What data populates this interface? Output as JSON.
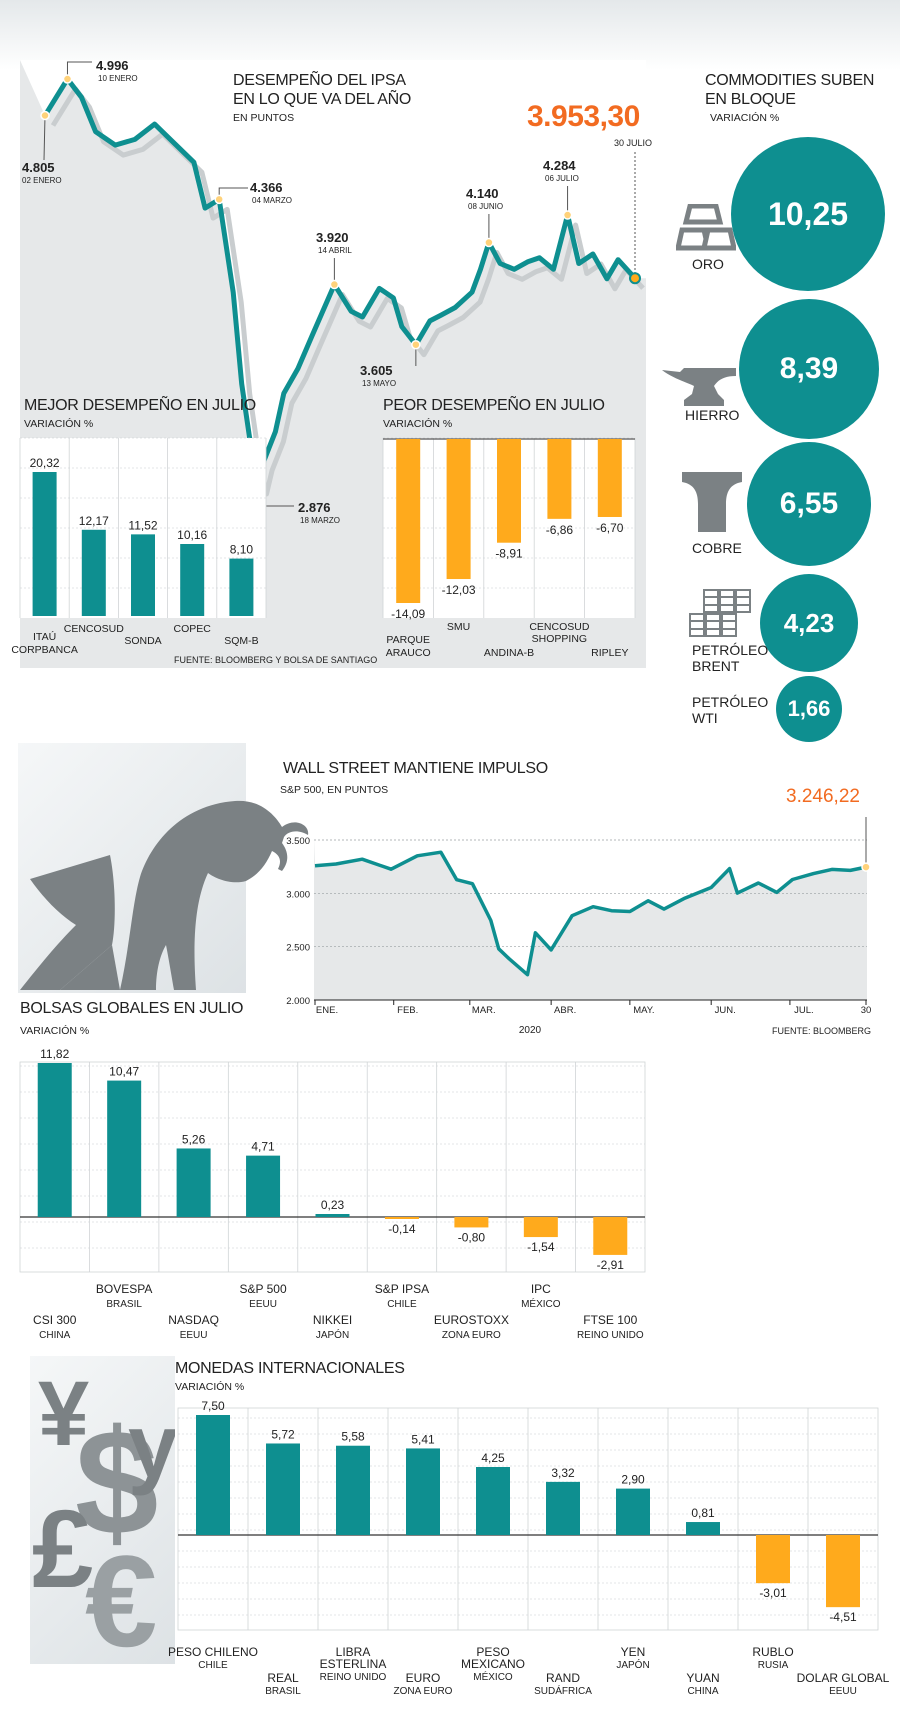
{
  "colors": {
    "teal": "#0e8f90",
    "orange": "#ffaa1c",
    "accent_orange": "#f26b21",
    "gray": "#7b8184",
    "panel": "#e6e8e9"
  },
  "ipsa": {
    "title_line1": "DESEMPEÑO DEL IPSA",
    "title_line2": "EN LO QUE VA DEL AÑO",
    "subtitle": "EN PUNTOS",
    "last_value": "3.953,30",
    "last_date": "30 JULIO",
    "annotations": [
      {
        "value": "4.805",
        "date": "02 ENERO"
      },
      {
        "value": "4.996",
        "date": "10 ENERO"
      },
      {
        "value": "4.366",
        "date": "04 MARZO"
      },
      {
        "value": "3.920",
        "date": "14 ABRIL"
      },
      {
        "value": "2.876",
        "date": "18 MARZO"
      },
      {
        "value": "3.605",
        "date": "13 MAYO"
      },
      {
        "value": "4.140",
        "date": "08 JUNIO"
      },
      {
        "value": "4.284",
        "date": "06 JULIO"
      }
    ]
  },
  "commodities": {
    "title_line1": "COMMODITIES SUBEN",
    "title_line2": "EN BLOQUE",
    "subtitle": "VARIACIÓN %",
    "items": [
      {
        "name": "ORO",
        "value": "10,25",
        "icon": "gold-bars-icon"
      },
      {
        "name": "HIERRO",
        "value": "8,39",
        "icon": "anvil-icon"
      },
      {
        "name": "COBRE",
        "value": "6,55",
        "icon": "copper-ingot-icon"
      },
      {
        "name_line1": "PETRÓLEO",
        "name_line2": "BRENT",
        "value": "4,23",
        "icon": "oil-barrels-icon"
      },
      {
        "name_line1": "PETRÓLEO",
        "name_line2": "WTI",
        "value": "1,66"
      }
    ]
  },
  "sp500": {
    "title": "WALL STREET MANTIENE IMPULSO",
    "subtitle": "S&P 500, EN PUNTOS",
    "last_value": "3.246,22",
    "source": "FUENTE: BLOOMBERG",
    "year_label": "2020"
  },
  "global_title": "BOLSAS GLOBALES EN JULIO",
  "global_subtitle": "VARIACIÓN %",
  "currency_title": "MONEDAS INTERNACIONALES",
  "currency_subtitle": "VARIACIÓN %",
  "best_title": "MEJOR DESEMPEÑO EN JULIO",
  "best_subtitle": "VARIACIÓN %",
  "worst_title": "PEOR DESEMPEÑO  EN JULIO",
  "worst_subtitle": "VARIACIÓN %",
  "best_worst_source": "FUENTE: BLOOMBERG Y BOLSA DE SANTIAGO",
  "chart_data": [
    {
      "type": "line",
      "title": "DESEMPEÑO DEL IPSA EN LO QUE VA DEL AÑO",
      "ylabel": "EN PUNTOS",
      "x": [
        "2020-01-02",
        "2020-01-06",
        "2020-01-10",
        "2020-01-15",
        "2020-01-20",
        "2020-01-27",
        "2020-02-03",
        "2020-02-10",
        "2020-02-17",
        "2020-02-24",
        "2020-02-28",
        "2020-03-04",
        "2020-03-09",
        "2020-03-12",
        "2020-03-16",
        "2020-03-18",
        "2020-03-20",
        "2020-03-24",
        "2020-03-27",
        "2020-04-01",
        "2020-04-06",
        "2020-04-14",
        "2020-04-20",
        "2020-04-24",
        "2020-04-30",
        "2020-05-05",
        "2020-05-08",
        "2020-05-13",
        "2020-05-18",
        "2020-05-22",
        "2020-05-27",
        "2020-06-02",
        "2020-06-05",
        "2020-06-08",
        "2020-06-12",
        "2020-06-17",
        "2020-06-22",
        "2020-06-26",
        "2020-07-01",
        "2020-07-06",
        "2020-07-10",
        "2020-07-15",
        "2020-07-20",
        "2020-07-24",
        "2020-07-30"
      ],
      "values": [
        4805,
        4900,
        4996,
        4900,
        4720,
        4650,
        4680,
        4760,
        4660,
        4560,
        4320,
        4366,
        3880,
        3400,
        3000,
        2876,
        3000,
        3150,
        3350,
        3480,
        3650,
        3920,
        3780,
        3750,
        3900,
        3850,
        3700,
        3605,
        3730,
        3760,
        3800,
        3880,
        4000,
        4140,
        4030,
        4000,
        4040,
        4060,
        4000,
        4284,
        4030,
        4080,
        3950,
        4050,
        3953.3
      ],
      "ylim": [
        2700,
        5050
      ]
    },
    {
      "type": "bar",
      "title": "MEJOR DESEMPEÑO EN JULIO",
      "ylabel": "VARIACIÓN %",
      "categories": [
        "ITAÚ CORPBANCA",
        "CENCOSUD",
        "SONDA",
        "COPEC",
        "SQM-B"
      ],
      "values": [
        20.32,
        12.17,
        11.52,
        10.16,
        8.1
      ],
      "labels": [
        "20,32",
        "12,17",
        "11,52",
        "10,16",
        "8,10"
      ],
      "ylim": [
        0,
        25
      ]
    },
    {
      "type": "bar",
      "title": "PEOR DESEMPEÑO  EN JULIO",
      "ylabel": "VARIACIÓN %",
      "categories": [
        "PARQUE ARAUCO",
        "SMU",
        "ANDINA-B",
        "CENCOSUD SHOPPING",
        "RIPLEY"
      ],
      "values": [
        -14.09,
        -12.03,
        -8.91,
        -6.86,
        -6.7
      ],
      "labels": [
        "-14,09",
        "-12,03",
        "-8,91",
        "-6,86",
        "-6,70"
      ],
      "ylim": [
        -16,
        0
      ]
    },
    {
      "type": "line",
      "title": "WALL STREET MANTIENE IMPULSO",
      "ylabel": "S&P 500, EN PUNTOS",
      "x": [
        "2020-01-02",
        "2020-01-10",
        "2020-01-20",
        "2020-01-31",
        "2020-02-10",
        "2020-02-19",
        "2020-02-25",
        "2020-03-02",
        "2020-03-09",
        "2020-03-12",
        "2020-03-16",
        "2020-03-23",
        "2020-03-26",
        "2020-04-01",
        "2020-04-09",
        "2020-04-17",
        "2020-04-24",
        "2020-05-01",
        "2020-05-08",
        "2020-05-14",
        "2020-05-22",
        "2020-06-01",
        "2020-06-08",
        "2020-06-11",
        "2020-06-19",
        "2020-06-26",
        "2020-07-02",
        "2020-07-10",
        "2020-07-17",
        "2020-07-24",
        "2020-07-30"
      ],
      "values": [
        3258,
        3275,
        3320,
        3226,
        3352,
        3386,
        3128,
        3090,
        2746,
        2480,
        2386,
        2237,
        2630,
        2470,
        2790,
        2875,
        2837,
        2830,
        2930,
        2852,
        2955,
        3055,
        3232,
        3002,
        3097,
        3009,
        3130,
        3185,
        3224,
        3215,
        3246.22
      ],
      "categories": [
        "ENE.",
        "FEB.",
        "MAR.",
        "ABR.",
        "MAY.",
        "JUN.",
        "JUL.",
        "30"
      ],
      "yticks": [
        "3.500",
        "3.000",
        "2.500",
        "2.000"
      ],
      "ylim": [
        2000,
        3500
      ]
    },
    {
      "type": "bar",
      "title": "BOLSAS GLOBALES EN JULIO",
      "ylabel": "VARIACIÓN %",
      "categories": [
        "CSI 300",
        "BOVESPA",
        "NASDAQ",
        "S&P 500",
        "NIKKEI",
        "S&P IPSA",
        "EUROSTOXX",
        "IPC",
        "FTSE 100"
      ],
      "sublabels": [
        "CHINA",
        "BRASIL",
        "EEUU",
        "EEUU",
        "JAPÓN",
        "CHILE",
        "ZONA EURO",
        "MÉXICO",
        "REINO UNIDO"
      ],
      "values": [
        11.82,
        10.47,
        5.26,
        4.71,
        0.23,
        -0.14,
        -0.8,
        -1.54,
        -2.91
      ],
      "labels": [
        "11,82",
        "10,47",
        "5,26",
        "4,71",
        "0,23",
        "-0,14",
        "-0,80",
        "-1,54",
        "-2,91"
      ]
    },
    {
      "type": "bar",
      "title": "MONEDAS INTERNACIONALES",
      "ylabel": "VARIACIÓN %",
      "categories": [
        "PESO CHILENO",
        "REAL",
        "LIBRA ESTERLINA",
        "EURO",
        "PESO MEXICANO",
        "RAND",
        "YEN",
        "YUAN",
        "RUBLO",
        "DOLAR GLOBAL"
      ],
      "sublabels": [
        "CHILE",
        "BRASIL",
        "REINO UNIDO",
        "ZONA EURO",
        "MÉXICO",
        "SUDÁFRICA",
        "JAPÓN",
        "CHINA",
        "RUSIA",
        "EEUU"
      ],
      "values": [
        7.5,
        5.72,
        5.58,
        5.41,
        4.25,
        3.32,
        2.9,
        0.81,
        -3.01,
        -4.51
      ],
      "labels": [
        "7,50",
        "5,72",
        "5,58",
        "5,41",
        "4,25",
        "3,32",
        "2,90",
        "0,81",
        "-3,01",
        "-4,51"
      ]
    }
  ]
}
